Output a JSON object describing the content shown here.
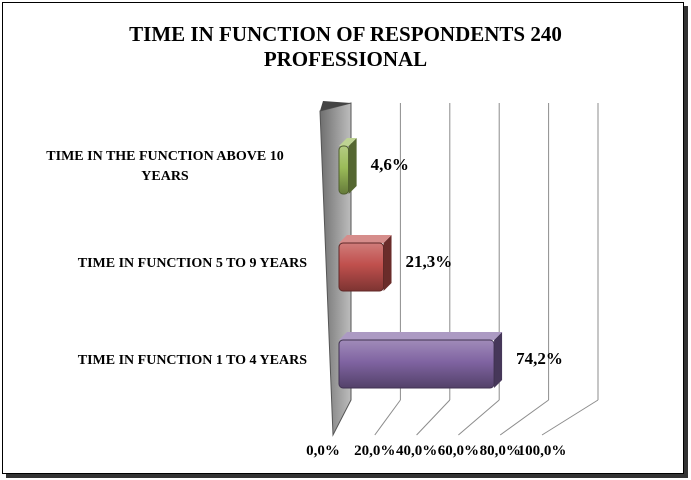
{
  "chart_data": {
    "type": "bar",
    "orientation": "horizontal",
    "title": "TIME IN FUNCTION OF RESPONDENTS 240 PROFESSIONAL",
    "title_lines": [
      "TIME IN FUNCTION OF RESPONDENTS 240",
      "PROFESSIONAL"
    ],
    "categories": [
      {
        "lines": [
          "TIME IN THE FUNCTION ABOVE 10",
          "YEARS"
        ]
      },
      {
        "lines": [
          "TIME IN FUNCTION 5 TO 9 YEARS"
        ]
      },
      {
        "lines": [
          "TIME IN FUNCTION 1 TO 4 YEARS"
        ]
      }
    ],
    "values": [
      4.6,
      21.3,
      74.2
    ],
    "value_labels": [
      "4,6%",
      "21,3%",
      "74,2%"
    ],
    "colors": [
      "#9bbb59",
      "#c0504d",
      "#8064a2"
    ],
    "xlim": [
      0,
      100
    ],
    "x_ticks": [
      "0,0%",
      "20,0%",
      "40,0%",
      "60,0%",
      "80,0%",
      "100,0%"
    ],
    "x_tick_values": [
      0,
      20,
      40,
      60,
      80,
      100
    ],
    "grid": true,
    "legend": "none",
    "style": "3d"
  }
}
